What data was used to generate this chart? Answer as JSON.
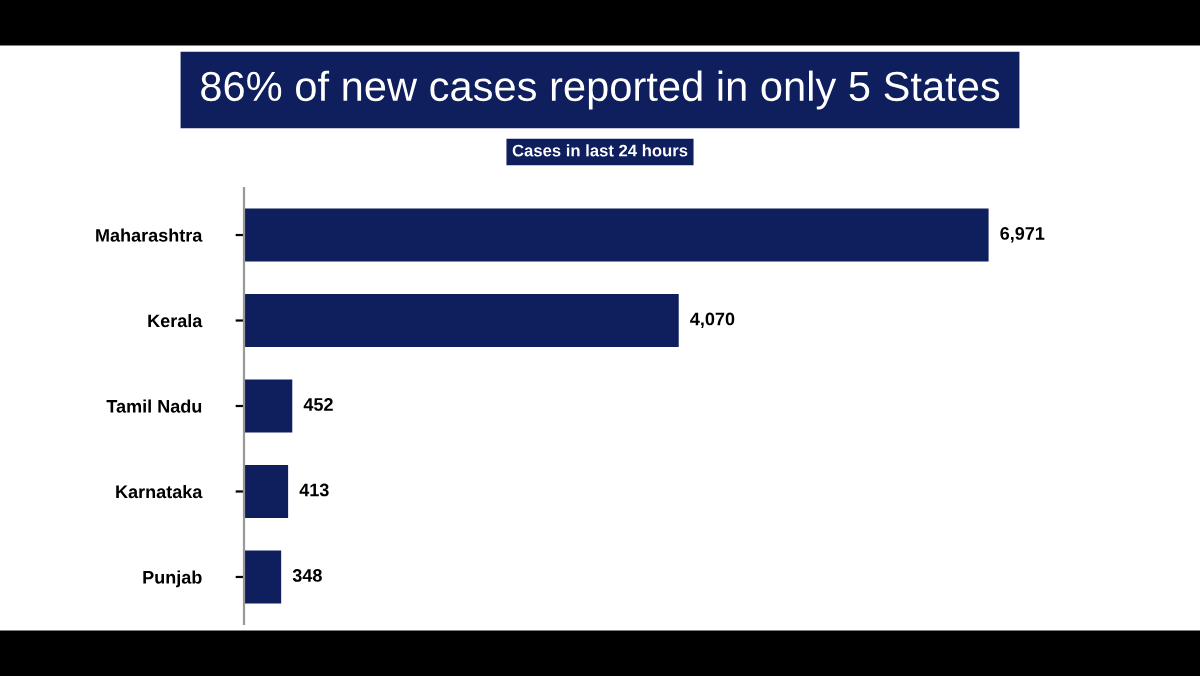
{
  "chart_data": {
    "type": "bar",
    "orientation": "horizontal",
    "title": "86% of new cases reported in only 5 States",
    "subtitle": "Cases in last 24 hours",
    "categories": [
      "Maharashtra",
      "Kerala",
      "Tamil Nadu",
      "Karnataka",
      "Punjab"
    ],
    "values": [
      6971,
      4070,
      452,
      413,
      348
    ],
    "value_labels": [
      "6,971",
      "4,070",
      "452",
      "413",
      "348"
    ],
    "color": "#0f1f5e",
    "grid": false,
    "legend": false
  }
}
